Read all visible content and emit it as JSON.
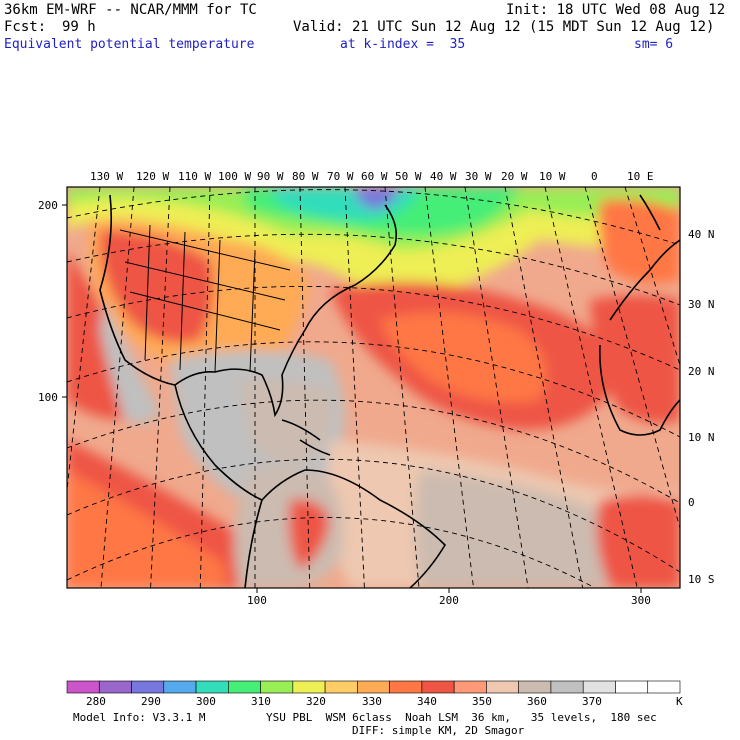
{
  "header": {
    "title": "36km EM-WRF -- NCAR/MMM for TC",
    "init": "Init: 18 UTC Wed 08 Aug 12",
    "fcst_label": "Fcst:",
    "fcst_value": "99 h",
    "valid": "Valid: 21 UTC Sun 12 Aug 12 (15 MDT Sun 12 Aug 12)",
    "field": "Equivalent potential temperature",
    "level": "at k-index =  35",
    "smooth": "sm= 6"
  },
  "axes": {
    "top_lon": [
      "130 W",
      "120 W",
      "110 W",
      "100 W",
      "90 W",
      "80 W",
      "70 W",
      "60 W",
      "50 W",
      "40 W",
      "30 W",
      "20 W",
      "10 W",
      "0",
      "10 E"
    ],
    "right_lat": [
      "40 N",
      "30 N",
      "20 N",
      "10 N",
      "0",
      "10 S"
    ],
    "left_grid": [
      "200",
      "100"
    ],
    "bottom_grid": [
      "100",
      "200",
      "300"
    ]
  },
  "colorbar": {
    "labels": [
      "280",
      "290",
      "300",
      "310",
      "320",
      "330",
      "340",
      "350",
      "360",
      "370"
    ],
    "unit": "K",
    "colors": [
      "#cc55cc",
      "#9966cc",
      "#7777dd",
      "#55aaee",
      "#33ddbb",
      "#44ee77",
      "#99ee55",
      "#eeee55",
      "#ffcc66",
      "#ffaa55",
      "#ff7744",
      "#ee5544",
      "#ff9977",
      "#eec8b0",
      "#ccbbb0",
      "#c0c0c0",
      "#e2e2e2",
      "#ffffff",
      "#ffffff"
    ]
  },
  "footer": {
    "model": "Model Info: V3.3.1 M",
    "physics": "YSU PBL  WSM 6class  Noah LSM  36 km,   35 levels,  180 sec",
    "diff": "DIFF: simple KM, 2D Smagor"
  }
}
